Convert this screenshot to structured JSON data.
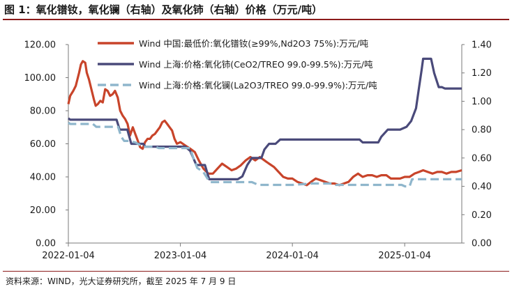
{
  "title": "图 1：氧化镨钕，氧化镧（右轴）及氧化铈（右轴）价格（万元/吨）",
  "source": "资料来源：WIND，光大证券研究所，截至 2025 年 7 月 9 日",
  "chart_data": {
    "type": "line",
    "title": "图 1：氧化镨钕，氧化镧（右轴）及氧化铈（右轴）价格（万元/吨）",
    "x_tick_labels": [
      "2022-01-04",
      "2023-01-04",
      "2024-01-04",
      "2025-01-04"
    ],
    "x_ticks": [
      "2022-01-04",
      "2023-01-04",
      "2024-01-04",
      "2025-01-04"
    ],
    "x_range": [
      "2022-01-04",
      "2025-07-09"
    ],
    "y_left": {
      "range": [
        0,
        120
      ],
      "ticks": [
        0,
        20,
        40,
        60,
        80,
        100,
        120
      ],
      "tick_labels": [
        "0.00",
        "20.00",
        "40.00",
        "60.00",
        "80.00",
        "100.00",
        "120.00"
      ]
    },
    "y_right": {
      "range": [
        0,
        1.4
      ],
      "ticks": [
        0,
        0.2,
        0.4,
        0.6,
        0.8,
        1.0,
        1.2,
        1.4
      ],
      "tick_labels": [
        "0.00",
        "0.20",
        "0.40",
        "0.60",
        "0.80",
        "1.00",
        "1.20",
        "1.40"
      ]
    },
    "legend_position": "top",
    "series": [
      {
        "name": "Wind 中国:最低价:氧化镨钕(≥99%,Nd2O3 75%):万元/吨",
        "axis": "left",
        "color": "#c8442a",
        "style": "solid",
        "points": [
          [
            "2022-01-04",
            84
          ],
          [
            "2022-01-10",
            89
          ],
          [
            "2022-01-20",
            92
          ],
          [
            "2022-01-28",
            95
          ],
          [
            "2022-02-08",
            103
          ],
          [
            "2022-02-14",
            108
          ],
          [
            "2022-02-20",
            110
          ],
          [
            "2022-02-28",
            109
          ],
          [
            "2022-03-05",
            103
          ],
          [
            "2022-03-12",
            99
          ],
          [
            "2022-03-20",
            93
          ],
          [
            "2022-03-28",
            87
          ],
          [
            "2022-04-03",
            83
          ],
          [
            "2022-04-10",
            84
          ],
          [
            "2022-04-18",
            86
          ],
          [
            "2022-04-26",
            85
          ],
          [
            "2022-05-04",
            93
          ],
          [
            "2022-05-12",
            92
          ],
          [
            "2022-05-20",
            89
          ],
          [
            "2022-05-28",
            90
          ],
          [
            "2022-06-05",
            92
          ],
          [
            "2022-06-14",
            88
          ],
          [
            "2022-06-22",
            80
          ],
          [
            "2022-06-30",
            77
          ],
          [
            "2022-07-08",
            75
          ],
          [
            "2022-07-16",
            72
          ],
          [
            "2022-07-24",
            65
          ],
          [
            "2022-08-02",
            70
          ],
          [
            "2022-08-10",
            66
          ],
          [
            "2022-08-18",
            62
          ],
          [
            "2022-08-26",
            58
          ],
          [
            "2022-09-03",
            57
          ],
          [
            "2022-09-11",
            61
          ],
          [
            "2022-09-19",
            63
          ],
          [
            "2022-09-27",
            63
          ],
          [
            "2022-10-05",
            65
          ],
          [
            "2022-10-13",
            66
          ],
          [
            "2022-10-21",
            68
          ],
          [
            "2022-10-29",
            70
          ],
          [
            "2022-11-06",
            73
          ],
          [
            "2022-11-14",
            74
          ],
          [
            "2022-11-22",
            72
          ],
          [
            "2022-11-30",
            70
          ],
          [
            "2022-12-08",
            68
          ],
          [
            "2022-12-16",
            63
          ],
          [
            "2022-12-24",
            60
          ],
          [
            "2023-01-04",
            61
          ],
          [
            "2023-01-20",
            59
          ],
          [
            "2023-02-05",
            57
          ],
          [
            "2023-02-20",
            55
          ],
          [
            "2023-03-05",
            50
          ],
          [
            "2023-03-20",
            45
          ],
          [
            "2023-04-05",
            42
          ],
          [
            "2023-04-20",
            42
          ],
          [
            "2023-05-05",
            45
          ],
          [
            "2023-05-20",
            48
          ],
          [
            "2023-06-05",
            46
          ],
          [
            "2023-06-20",
            44
          ],
          [
            "2023-07-05",
            45
          ],
          [
            "2023-07-20",
            47
          ],
          [
            "2023-08-05",
            50
          ],
          [
            "2023-08-20",
            52
          ],
          [
            "2023-09-05",
            50
          ],
          [
            "2023-09-20",
            52
          ],
          [
            "2023-10-05",
            50
          ],
          [
            "2023-10-20",
            48
          ],
          [
            "2023-11-05",
            46
          ],
          [
            "2023-11-20",
            43
          ],
          [
            "2023-12-05",
            40
          ],
          [
            "2023-12-20",
            39
          ],
          [
            "2024-01-04",
            39
          ],
          [
            "2024-01-20",
            37
          ],
          [
            "2024-02-05",
            36
          ],
          [
            "2024-02-20",
            35
          ],
          [
            "2024-03-05",
            37
          ],
          [
            "2024-03-20",
            39
          ],
          [
            "2024-04-05",
            38
          ],
          [
            "2024-04-20",
            37
          ],
          [
            "2024-05-05",
            36
          ],
          [
            "2024-05-20",
            36
          ],
          [
            "2024-06-05",
            35
          ],
          [
            "2024-06-20",
            36
          ],
          [
            "2024-07-05",
            37
          ],
          [
            "2024-07-20",
            40
          ],
          [
            "2024-08-05",
            42
          ],
          [
            "2024-08-20",
            40
          ],
          [
            "2024-09-05",
            41
          ],
          [
            "2024-09-20",
            41
          ],
          [
            "2024-10-05",
            40
          ],
          [
            "2024-10-20",
            41
          ],
          [
            "2024-11-05",
            41
          ],
          [
            "2024-11-20",
            39
          ],
          [
            "2024-12-05",
            39
          ],
          [
            "2024-12-20",
            39
          ],
          [
            "2025-01-04",
            40
          ],
          [
            "2025-01-20",
            40
          ],
          [
            "2025-02-05",
            42
          ],
          [
            "2025-02-20",
            43
          ],
          [
            "2025-03-05",
            44
          ],
          [
            "2025-03-20",
            43
          ],
          [
            "2025-04-05",
            42
          ],
          [
            "2025-04-20",
            43
          ],
          [
            "2025-05-05",
            43
          ],
          [
            "2025-05-20",
            42
          ],
          [
            "2025-06-05",
            43
          ],
          [
            "2025-06-20",
            43
          ],
          [
            "2025-07-09",
            44
          ]
        ]
      },
      {
        "name": "Wind 上海:价格:氧化铈(CeO2/TREO 99.0-99.5%):万元/吨",
        "axis": "right",
        "color": "#4a4a7a",
        "style": "solid",
        "points": [
          [
            "2022-01-04",
            0.88
          ],
          [
            "2022-01-10",
            0.87
          ],
          [
            "2022-06-10",
            0.87
          ],
          [
            "2022-06-20",
            0.8
          ],
          [
            "2022-07-15",
            0.8
          ],
          [
            "2022-07-28",
            0.7
          ],
          [
            "2022-09-05",
            0.7
          ],
          [
            "2022-09-12",
            0.68
          ],
          [
            "2023-01-20",
            0.68
          ],
          [
            "2023-02-05",
            0.65
          ],
          [
            "2023-02-25",
            0.55
          ],
          [
            "2023-03-25",
            0.55
          ],
          [
            "2023-04-08",
            0.45
          ],
          [
            "2023-07-10",
            0.45
          ],
          [
            "2023-07-25",
            0.47
          ],
          [
            "2023-08-10",
            0.55
          ],
          [
            "2023-08-25",
            0.6
          ],
          [
            "2023-09-25",
            0.6
          ],
          [
            "2023-10-05",
            0.66
          ],
          [
            "2023-10-20",
            0.7
          ],
          [
            "2023-11-10",
            0.7
          ],
          [
            "2023-11-25",
            0.73
          ],
          [
            "2024-01-04",
            0.73
          ],
          [
            "2024-08-10",
            0.73
          ],
          [
            "2024-08-20",
            0.71
          ],
          [
            "2024-10-10",
            0.71
          ],
          [
            "2024-10-20",
            0.75
          ],
          [
            "2024-11-10",
            0.8
          ],
          [
            "2024-12-20",
            0.8
          ],
          [
            "2025-01-10",
            0.82
          ],
          [
            "2025-01-25",
            0.86
          ],
          [
            "2025-02-10",
            0.95
          ],
          [
            "2025-02-20",
            1.1
          ],
          [
            "2025-02-28",
            1.22
          ],
          [
            "2025-03-05",
            1.3
          ],
          [
            "2025-03-31",
            1.3
          ],
          [
            "2025-04-10",
            1.2
          ],
          [
            "2025-04-25",
            1.1
          ],
          [
            "2025-05-05",
            1.1
          ],
          [
            "2025-05-15",
            1.09
          ],
          [
            "2025-07-09",
            1.09
          ]
        ]
      },
      {
        "name": "Wind 上海:价格:氧化镧(La2O3/TREO 99.0-99.9%):万元/吨",
        "axis": "right",
        "color": "#8fb6cc",
        "style": "dashed",
        "points": [
          [
            "2022-01-04",
            0.85
          ],
          [
            "2022-01-10",
            0.84
          ],
          [
            "2022-03-25",
            0.84
          ],
          [
            "2022-04-05",
            0.82
          ],
          [
            "2022-06-15",
            0.82
          ],
          [
            "2022-06-25",
            0.75
          ],
          [
            "2022-07-05",
            0.72
          ],
          [
            "2022-07-20",
            0.72
          ],
          [
            "2022-08-10",
            0.71
          ],
          [
            "2022-09-05",
            0.68
          ],
          [
            "2022-10-15",
            0.68
          ],
          [
            "2022-10-25",
            0.67
          ],
          [
            "2023-02-05",
            0.67
          ],
          [
            "2023-02-15",
            0.6
          ],
          [
            "2023-02-28",
            0.53
          ],
          [
            "2023-03-20",
            0.5
          ],
          [
            "2023-04-10",
            0.43
          ],
          [
            "2023-08-25",
            0.43
          ],
          [
            "2023-09-15",
            0.41
          ],
          [
            "2024-01-04",
            0.41
          ],
          [
            "2024-03-10",
            0.42
          ],
          [
            "2024-05-15",
            0.42
          ],
          [
            "2024-05-25",
            0.41
          ],
          [
            "2024-12-25",
            0.41
          ],
          [
            "2025-01-05",
            0.4
          ],
          [
            "2025-01-20",
            0.4
          ],
          [
            "2025-01-28",
            0.45
          ],
          [
            "2025-07-09",
            0.45
          ]
        ]
      }
    ]
  }
}
